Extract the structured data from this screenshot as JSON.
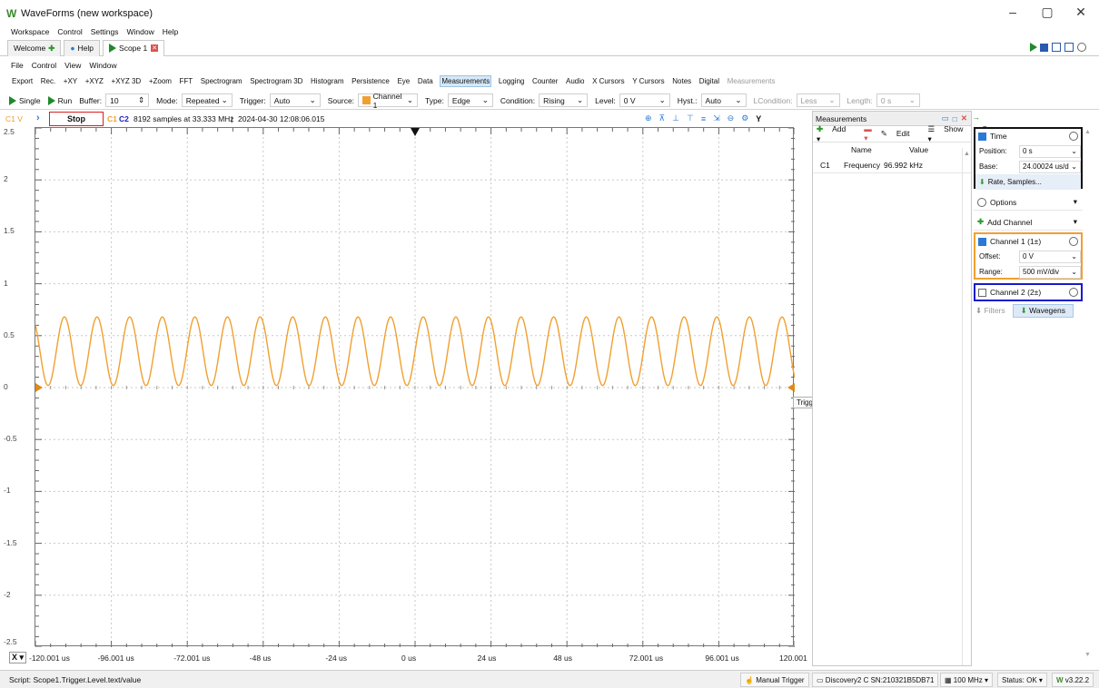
{
  "app": {
    "title": "WaveForms (new workspace)",
    "logo": "W",
    "window_buttons": [
      "–",
      "▢",
      "✕"
    ]
  },
  "main_menu": [
    "Workspace",
    "Control",
    "Settings",
    "Window",
    "Help"
  ],
  "tabs": [
    {
      "label": "Welcome",
      "icon": "plus-icon"
    },
    {
      "label": "Help",
      "icon": "help-icon"
    },
    {
      "label": "Scope 1",
      "icon": "play-icon",
      "close": "✕"
    }
  ],
  "scope_menu": [
    "File",
    "Control",
    "View",
    "Window"
  ],
  "toolbar_items": [
    "Export",
    "Rec.",
    "+XY",
    "+XYZ",
    "+XYZ 3D",
    "+Zoom",
    "FFT",
    "Spectrogram",
    "Spectrogram 3D",
    "Histogram",
    "Persistence",
    "Eye",
    "Data",
    "Measurements",
    "Logging",
    "Counter",
    "Audio",
    "X Cursors",
    "Y Cursors",
    "Notes",
    "Digital",
    "Measurements"
  ],
  "toolbar_selected": "Measurements",
  "controls": {
    "single": "Single",
    "run": "Run",
    "buffer_label": "Buffer:",
    "buffer_value": "10",
    "mode_label": "Mode:",
    "mode_value": "Repeated",
    "trigger_label": "Trigger:",
    "trigger_value": "Auto",
    "source_label": "Source:",
    "source_value": "Channel 1",
    "type_label": "Type:",
    "type_value": "Edge",
    "condition_label": "Condition:",
    "condition_value": "Rising",
    "level_label": "Level:",
    "level_value": "0 V",
    "hyst_label": "Hyst.:",
    "hyst_value": "Auto",
    "lcondition_label": "LCondition:",
    "lcondition_value": "Less",
    "length_label": "Length:",
    "length_value": "0 s"
  },
  "scope_info": {
    "ch_label": "C1 V",
    "stop": "Stop",
    "c1": "C1",
    "c2": "C2",
    "samples": "8192 samples at 33.333 MHz",
    "timestamp": "2024-04-30 12:08:06.015"
  },
  "chart_data": {
    "type": "line",
    "title": "",
    "xlabel": "",
    "ylabel": "C1 V",
    "xlim": [
      -120.001,
      120.001
    ],
    "ylim": [
      -2.5,
      2.5
    ],
    "x_ticks": [
      "-120.001 us",
      "-96.001 us",
      "-72.001 us",
      "-48 us",
      "-24 us",
      "0 us",
      "24 us",
      "48 us",
      "72.001 us",
      "96.001 us",
      "120.001"
    ],
    "y_ticks": [
      "2.5",
      "2",
      "1.5",
      "1",
      "0.5",
      "0",
      "-0.5",
      "-1",
      "-1.5",
      "-2",
      "-2.5"
    ],
    "series": [
      {
        "name": "C1",
        "color": "#f0a030",
        "kind": "sine",
        "frequency_khz": 96.992,
        "y_min": 0.02,
        "y_max": 0.68
      }
    ],
    "trigger_level": 0,
    "grid": true
  },
  "tooltip": "Trigger Level",
  "measurements": {
    "title": "Measurements",
    "toolbar": [
      "Add",
      "Edit",
      "Show"
    ],
    "columns": [
      "Name",
      "Value"
    ],
    "rows": [
      {
        "ch": "C1",
        "name": "Frequency",
        "value": "96.992 kHz"
      }
    ]
  },
  "right_panel": {
    "time": {
      "header": "Time",
      "position_label": "Position:",
      "position_value": "0 s",
      "base_label": "Base:",
      "base_value": "24.00024 us/d",
      "rate": "Rate, Samples..."
    },
    "options": "Options",
    "add_channel": "Add Channel",
    "channel1": {
      "header": "Channel 1 (1±)",
      "offset_label": "Offset:",
      "offset_value": "0 V",
      "range_label": "Range:",
      "range_value": "500 mV/div"
    },
    "channel2": {
      "header": "Channel 2 (2±)"
    },
    "filters": "Filters",
    "wavegens": "Wavegens",
    "colors": {
      "time_border": "#111111",
      "ch1_border": "#f0a030",
      "ch2_border": "#1a1acc"
    }
  },
  "status": {
    "script": "Script: Scope1.Trigger.Level.text/value",
    "manual_trigger": "Manual Trigger",
    "device": "Discovery2 C SN:210321B5DB71",
    "clock": "100 MHz",
    "status": "Status: OK",
    "version": "v3.22.2"
  }
}
